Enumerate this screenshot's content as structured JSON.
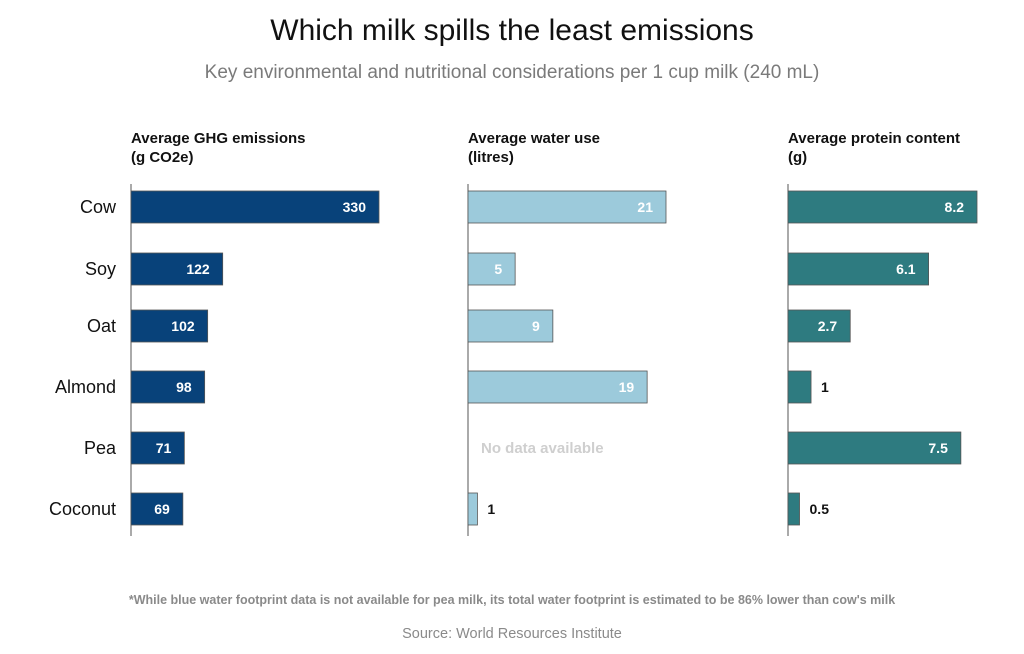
{
  "title": "Which milk spills the least emissions",
  "subtitle": "Key environmental and nutritional considerations per 1 cup milk (240 mL)",
  "footnote": "*While blue water footprint data is not available for pea milk, its total water footprint is estimated to be 86% lower than cow's milk",
  "source": "Source: World Resources Institute",
  "chart_data": {
    "type": "bar",
    "orientation": "horizontal",
    "categories": [
      "Cow",
      "Soy",
      "Oat",
      "Almond",
      "Pea",
      "Coconut"
    ],
    "series": [
      {
        "name": "Average GHG emissions (g CO2e)",
        "title_lines": [
          "Average GHG emissions",
          "(g CO2e)"
        ],
        "values": [
          330,
          122,
          102,
          98,
          71,
          69
        ],
        "labels": [
          "330",
          "122",
          "102",
          "98",
          "71",
          "69"
        ],
        "color": "#08427a",
        "xlim": [
          0,
          330
        ]
      },
      {
        "name": "Average water use (litres)",
        "title_lines": [
          "Average water use",
          "(litres)"
        ],
        "values": [
          21,
          5,
          9,
          19,
          null,
          1
        ],
        "labels": [
          "21",
          "5",
          "9",
          "19",
          "",
          "1"
        ],
        "missing_text": "No data available",
        "color": "#9ccadb",
        "xlim": [
          0,
          21
        ]
      },
      {
        "name": "Average protein content (g)",
        "title_lines": [
          "Average protein content",
          "(g)"
        ],
        "values": [
          8.2,
          6.1,
          2.7,
          1,
          7.5,
          0.5
        ],
        "labels": [
          "8.2",
          "6.1",
          "2.7",
          "1",
          "7.5",
          "0.5"
        ],
        "color": "#2e7b80",
        "xlim": [
          0,
          8.2
        ]
      }
    ],
    "grid": false,
    "legend": "none"
  }
}
